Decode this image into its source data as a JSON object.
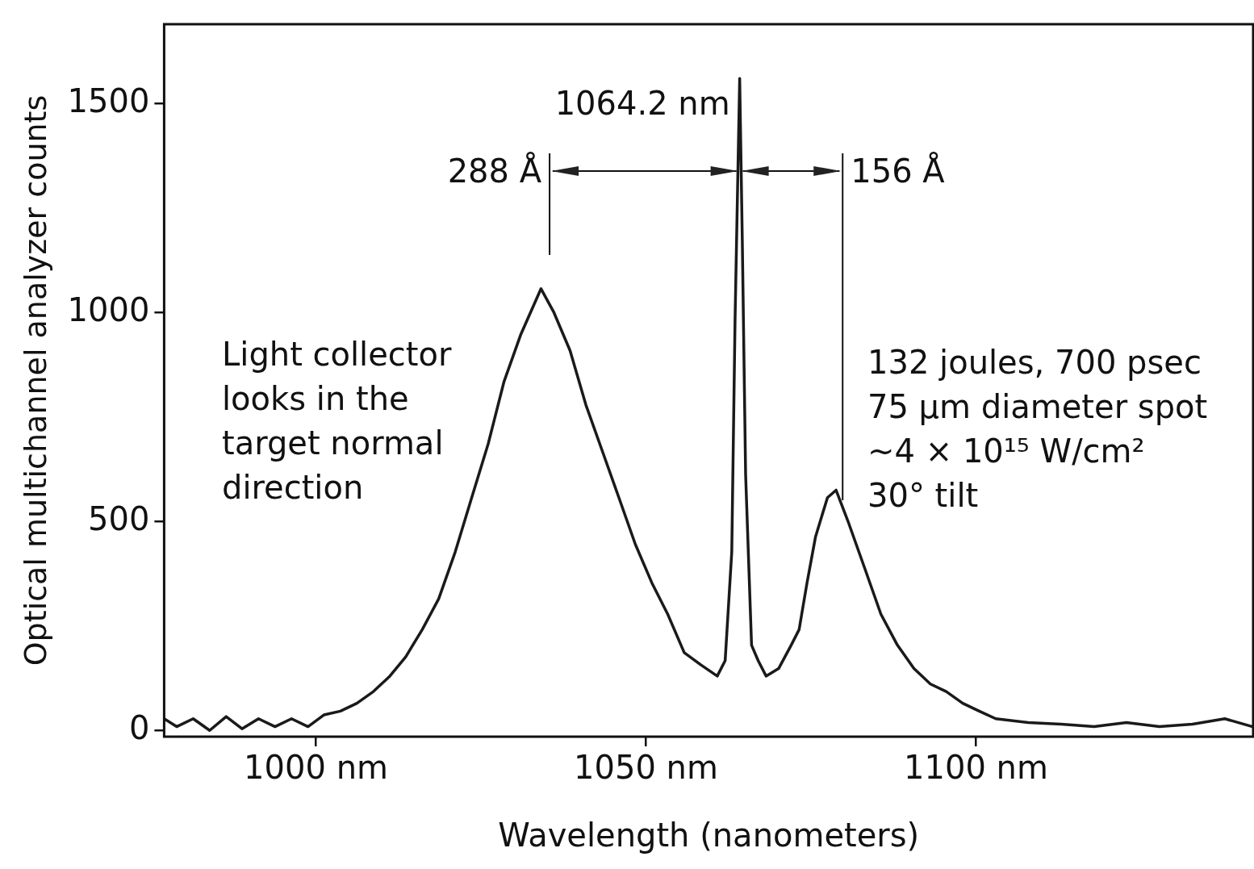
{
  "chart_data": {
    "type": "line",
    "xlabel": "Wavelength (nanometers)",
    "ylabel": "Optical multichannel analyzer counts",
    "ref_lines": [
      {
        "axis": "x",
        "value": 1035.4,
        "label": "288 Å"
      },
      {
        "axis": "x",
        "value": 1079.8,
        "label": "156 Å"
      }
    ],
    "xlim": [
      977,
      1142
    ],
    "ylim": [
      -15,
      1690
    ],
    "xticks": [
      {
        "value": 1000,
        "label": "1000 nm"
      },
      {
        "value": 1050,
        "label": "1050 nm"
      },
      {
        "value": 1100,
        "label": "1100 nm"
      }
    ],
    "yticks": [
      0,
      500,
      1000,
      1500
    ],
    "grid": false,
    "legend": false,
    "marker": "none",
    "line_style": "solid",
    "series": [
      {
        "color": "#1a1a1a",
        "x": [
          977.0,
          978.9,
          981.4,
          983.9,
          986.4,
          988.8,
          991.3,
          993.8,
          996.3,
          998.8,
          1001.2,
          1003.7,
          1006.2,
          1008.7,
          1011.2,
          1013.6,
          1016.1,
          1018.6,
          1021.1,
          1023.6,
          1026.1,
          1028.5,
          1031.0,
          1034.1,
          1036.0,
          1038.5,
          1040.9,
          1043.4,
          1045.9,
          1048.4,
          1050.9,
          1053.3,
          1055.8,
          1058.3,
          1060.8,
          1062.0,
          1063.0,
          1063.5,
          1064.2,
          1064.6,
          1065.1,
          1066.0,
          1067.0,
          1068.2,
          1070.1,
          1072.0,
          1073.2,
          1074.4,
          1075.7,
          1077.5,
          1078.8,
          1080.6,
          1083.1,
          1085.6,
          1088.1,
          1090.6,
          1093.1,
          1095.5,
          1098.0,
          1100.5,
          1103.0,
          1107.9,
          1112.9,
          1117.9,
          1122.8,
          1127.8,
          1132.8,
          1137.7,
          1141.9
        ],
        "values": [
          28,
          9,
          28,
          0,
          33,
          4,
          28,
          9,
          28,
          9,
          37,
          46,
          65,
          93,
          130,
          176,
          241,
          315,
          427,
          557,
          686,
          835,
          946,
          1057,
          1002,
          909,
          779,
          668,
          557,
          445,
          353,
          278,
          186,
          157,
          130,
          167,
          427,
          983,
          1560,
          1169,
          612,
          204,
          167,
          130,
          148,
          204,
          241,
          353,
          464,
          557,
          575,
          501,
          390,
          278,
          204,
          148,
          111,
          93,
          65,
          46,
          28,
          19,
          15,
          9,
          19,
          9,
          15,
          28,
          9
        ]
      }
    ],
    "annotations": [
      {
        "text": "1064.2 nm",
        "x": 1064.2,
        "y": 1560
      },
      "Light collector\nlooks in the\ntarget normal\ndirection",
      "132 joules, 700 psec\n75 μm diameter spot\n~4 × 10¹⁵ W/cm²\n30° tilt"
    ]
  }
}
